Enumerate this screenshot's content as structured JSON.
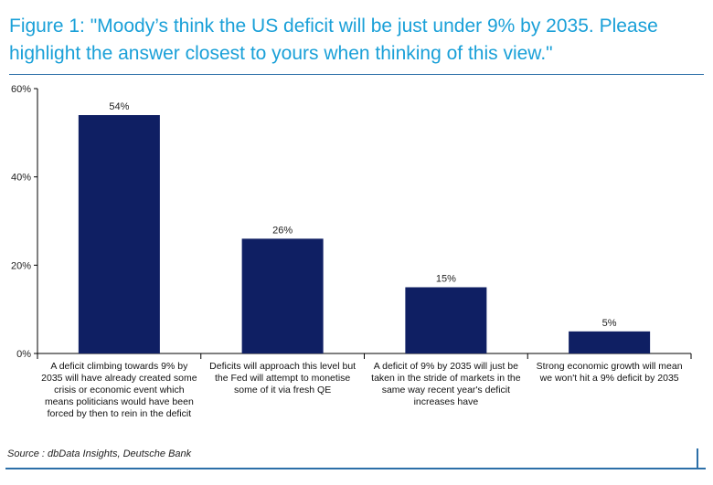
{
  "title": "Figure 1: \"Moody’s think the US deficit will be just under 9% by 2035. Please highlight the answer closest to yours when thinking of this view.\"",
  "source": "Source : dbData Insights, Deutsche Bank",
  "colors": {
    "title": "#1aa0d8",
    "bar": "#0f1f63",
    "rule": "#2c6fa8"
  },
  "chart_data": {
    "type": "bar",
    "categories": [
      [
        "A deficit climbing towards 9% by",
        "2035 will have already created some",
        "crisis or economic event which",
        "means politicians would have been",
        "forced by then to rein in the deficit"
      ],
      [
        "Deficits will approach this level but",
        "the Fed will attempt to monetise",
        "some of it via fresh QE"
      ],
      [
        "A deficit of 9% by 2035 will just be",
        "taken in the stride of markets in the",
        "same way recent year's deficit",
        "increases have"
      ],
      [
        "Strong economic growth will mean",
        "we won't hit a 9% deficit by 2035"
      ]
    ],
    "values": [
      54,
      26,
      15,
      5
    ],
    "data_labels": [
      "54%",
      "26%",
      "15%",
      "5%"
    ],
    "yticks": [
      0,
      20,
      40,
      60
    ],
    "ytick_labels": [
      "0%",
      "20%",
      "40%",
      "60%"
    ],
    "ylim": [
      0,
      60
    ],
    "grid": false,
    "legend": false,
    "xlabel": "",
    "ylabel": ""
  }
}
